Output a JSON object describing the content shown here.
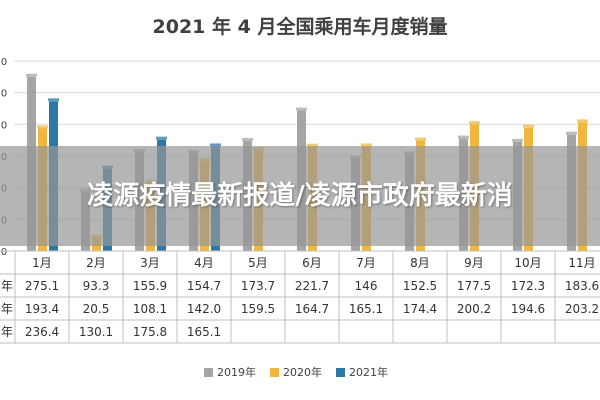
{
  "overlay": {
    "headline": "凌源疫情最新报道/凌源市政府最新消"
  },
  "colors": {
    "grid": "#d9d9d9",
    "table_line": "#bfbfbf"
  },
  "chart_data": {
    "type": "bar",
    "title": "2021 年 4 月全国乘用车月度销量",
    "xlabel": "",
    "ylabel": "",
    "ylim": [
      0,
      300
    ],
    "categories": [
      "1月",
      "2月",
      "3月",
      "4月",
      "5月",
      "6月",
      "7月",
      "8月",
      "9月",
      "10月",
      "11月"
    ],
    "series": [
      {
        "name": "2019年",
        "color": "#a5a5a5",
        "values": [
          275.1,
          93.3,
          155.9,
          154.7,
          173.7,
          221.7,
          146,
          152.5,
          177.5,
          172.3,
          183.6
        ],
        "labels": [
          "275.1",
          "93.3",
          "155.9",
          "154.7",
          "173.7",
          "221.7",
          "146",
          "152.5",
          "177.5",
          "172.3",
          "183.6"
        ]
      },
      {
        "name": "2020年",
        "color": "#f0b73f",
        "values": [
          193.4,
          20.5,
          108.1,
          142.0,
          159.5,
          164.7,
          165.1,
          174.4,
          200.2,
          194.6,
          203.2
        ],
        "labels": [
          "193.4",
          "20.5",
          "108.1",
          "142.0",
          "159.5",
          "164.7",
          "165.1",
          "174.4",
          "200.2",
          "194.6",
          "203.2"
        ]
      },
      {
        "name": "2021年",
        "color": "#2e78a6",
        "values": [
          236.4,
          130.1,
          175.8,
          165.1,
          null,
          null,
          null,
          null,
          null,
          null,
          null
        ],
        "labels": [
          "236.4",
          "130.1",
          "175.8",
          "165.1",
          "",
          "",
          "",
          "",
          "",
          "",
          ""
        ]
      }
    ],
    "table_row_labels": [
      "年",
      "年",
      "年"
    ],
    "y_tick_labels": [
      "0",
      "0",
      "0",
      "0",
      "0",
      "0",
      "0"
    ],
    "grid": true,
    "legend_position": "bottom"
  }
}
